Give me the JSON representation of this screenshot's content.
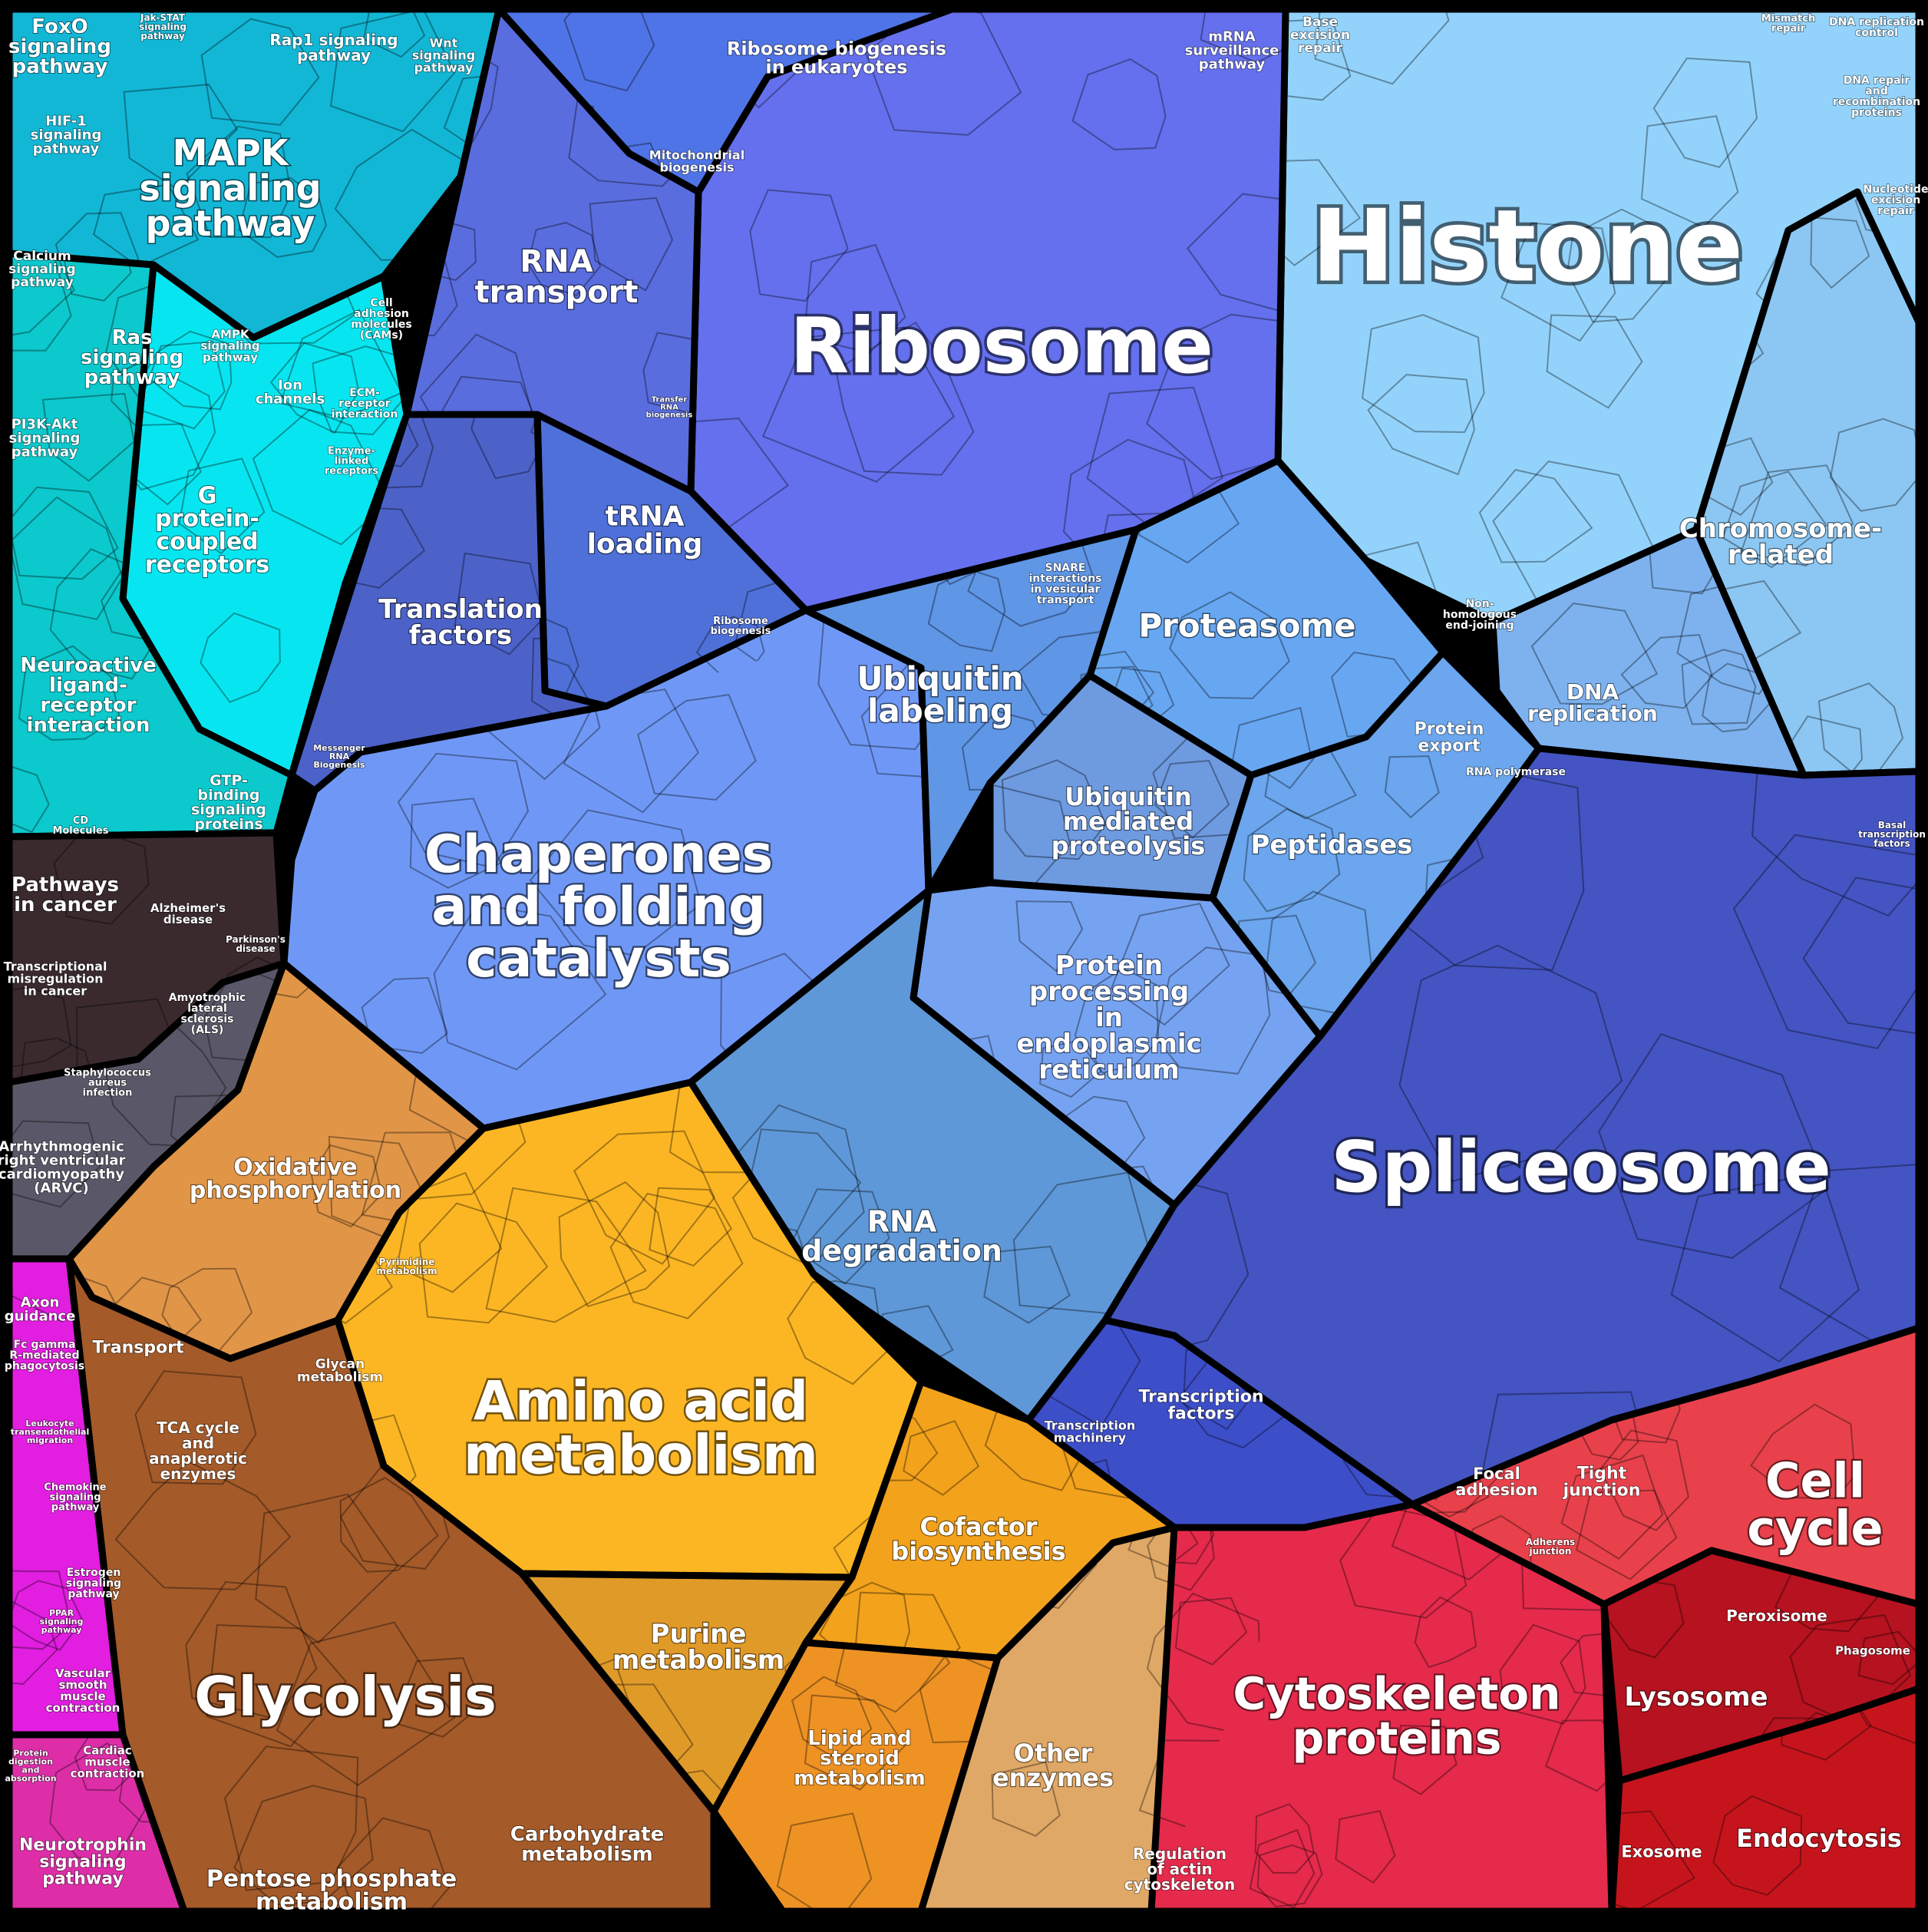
{
  "regions": [
    {
      "id": "histone",
      "label": "Histone",
      "color": "#93d3fb"
    },
    {
      "id": "chromosome",
      "label": "Chromosome-\nrelated",
      "color": "#8cc7f3"
    },
    {
      "id": "dna-repl",
      "label": "DNA\nreplication",
      "color": "#7db2ef"
    },
    {
      "id": "ribosome",
      "label": "Ribosome",
      "color": "#6570ee"
    },
    {
      "id": "ribo-biogen",
      "label": "Ribosome biogenesis\nin eukaryotes",
      "color": "#4f74e7"
    },
    {
      "id": "rna-transport",
      "label": "RNA\ntransport",
      "color": "#5a6ddf"
    },
    {
      "id": "trna",
      "label": "tRNA\nloading",
      "color": "#4e70d8"
    },
    {
      "id": "transl",
      "label": "Translation\nfactors",
      "color": "#4c62c9"
    },
    {
      "id": "chaperones",
      "label": "Chaperones\nand folding\ncatalysts",
      "color": "#6f98f6"
    },
    {
      "id": "ubiq-label",
      "label": "Ubiquitin\nlabeling",
      "color": "#5f96e6"
    },
    {
      "id": "proteasome",
      "label": "Proteasome",
      "color": "#67a7f2"
    },
    {
      "id": "ubiq-med",
      "label": "Ubiquitin\nmediated\nproteolysis",
      "color": "#6e9ae0"
    },
    {
      "id": "peptidases",
      "label": "Peptidases",
      "color": "#6ba6ee"
    },
    {
      "id": "protein-er",
      "label": "Protein\nprocessing\nin\nendoplasmic\nreticulum",
      "color": "#76a3f1"
    },
    {
      "id": "rna-degr",
      "label": "RNA\ndegradation",
      "color": "#5f98d8"
    },
    {
      "id": "spliceosome",
      "label": "Spliceosome",
      "color": "#4454c2"
    },
    {
      "id": "tf",
      "label": "Transcription\nfactors",
      "color": "#3d4ec9"
    },
    {
      "id": "mapk",
      "label": "MAPK\nsignaling\npathway",
      "color": "#12b7d6"
    },
    {
      "id": "gpcr",
      "label": "G\nprotein-\ncoupled\nreceptors",
      "color": "#07e6f0"
    },
    {
      "id": "neuro",
      "label": "Neuroactive\nligand-\nreceptor\ninteraction",
      "color": "#0bc9cd"
    },
    {
      "id": "cancer",
      "label": "Pathways\nin cancer",
      "color": "#3a2a2e"
    },
    {
      "id": "arvc",
      "label": "Arrhythmogenic\nright ventricular\ncardiomyopathy\n(ARVC)",
      "color": "#5a5868"
    },
    {
      "id": "oxphos",
      "label": "Oxidative\nphosphorylation",
      "color": "#e19547"
    },
    {
      "id": "amino",
      "label": "Amino acid\nmetabolism",
      "color": "#fcb623"
    },
    {
      "id": "glycolysis",
      "label": "Glycolysis",
      "color": "#a45a29"
    },
    {
      "id": "purine",
      "label": "Purine\nmetabolism",
      "color": "#e09a28"
    },
    {
      "id": "cofactor",
      "label": "Cofactor\nbiosynthesis",
      "color": "#f3a21b"
    },
    {
      "id": "lipid",
      "label": "Lipid and\nsteroid\nmetabolism",
      "color": "#ee9224"
    },
    {
      "id": "other-enz",
      "label": "Other\nenzymes",
      "color": "#e0a866"
    },
    {
      "id": "cytoskel",
      "label": "Cytoskeleton\nproteins",
      "color": "#e52a4b"
    },
    {
      "id": "cell-cycle",
      "label": "Cell\ncycle",
      "color": "#e8414b"
    },
    {
      "id": "lysosome",
      "label": "Lysosome",
      "color": "#b6121f"
    },
    {
      "id": "endocytosis",
      "label": "Endocytosis",
      "color": "#c6141d"
    },
    {
      "id": "axon",
      "label": "Axon\nguidance",
      "color": "#e21ee0"
    },
    {
      "id": "neurotroph",
      "label": "Neurotrophin\nsignaling\npathway",
      "color": "#dd2ea8"
    }
  ],
  "minor_labels": [
    "FoxO\nsignaling\npathway",
    "Jak-STAT\nsignaling\npathway",
    "Rap1 signaling\npathway",
    "Wnt\nsignaling\npathway",
    "HIF-1\nsignaling\npathway",
    "Calcium\nsignaling\npathway",
    "Ras\nsignaling\npathway",
    "AMPK\nsignaling\npathway",
    "Cell\nadhesion\nmolecules\n(CAMs)",
    "Ion\nchannels",
    "ECM-\nreceptor\ninteraction",
    "PI3K-Akt\nsignaling\npathway",
    "Enzyme-\nlinked\nreceptors",
    "GTP-\nbinding\nsignaling\nproteins",
    "CD\nMolecules",
    "Alzheimer's\ndisease",
    "Parkinson's\ndisease",
    "Transcriptional\nmisregulation\nin cancer",
    "Amyotrophic\nlateral\nsclerosis\n(ALS)",
    "Staphylococcus\naureus\ninfection",
    "Mitochondrial\nbiogenesis",
    "mRNA\nsurveillance\npathway",
    "Base\nexcision\nrepair",
    "Mismatch\nrepair",
    "DNA replication\ncontrol",
    "DNA repair\nand\nrecombination\nproteins",
    "Nucleotide\nexcision\nrepair",
    "SNARE\ninteractions\nin vesicular\ntransport",
    "Non-\nhomologous\nend-joining",
    "Protein\nexport",
    "RNA polymerase",
    "Basal\ntranscription\nfactors",
    "Messenger\nRNA\nBiogenesis",
    "Ribosome\nbiogenesis",
    "Transfer\nRNA\nbiogenesis",
    "Transcription\nmachinery",
    "Transport",
    "TCA cycle\nand\nanaplerotic\nenzymes",
    "Glycan\nmetabolism",
    "Pyrimidine\nmetabolism",
    "Pentose phosphate\nmetabolism",
    "Carbohydrate\nmetabolism",
    "Focal\nadhesion",
    "Tight\njunction",
    "Adherens\njunction",
    "Peroxisome",
    "Phagosome",
    "Exosome",
    "Regulation\nof actin\ncytoskeleton",
    "Fc gamma\nR-mediated\nphagocytosis",
    "Leukocyte\ntransendothelial\nmigration",
    "Chemokine\nsignaling\npathway",
    "Estrogen\nsignaling\npathway",
    "PPAR\nsignaling\npathway",
    "Vascular\nsmooth\nmuscle\ncontraction",
    "Cardiac\nmuscle\ncontraction",
    "Protein\ndigestion\nand\nabsorption"
  ]
}
